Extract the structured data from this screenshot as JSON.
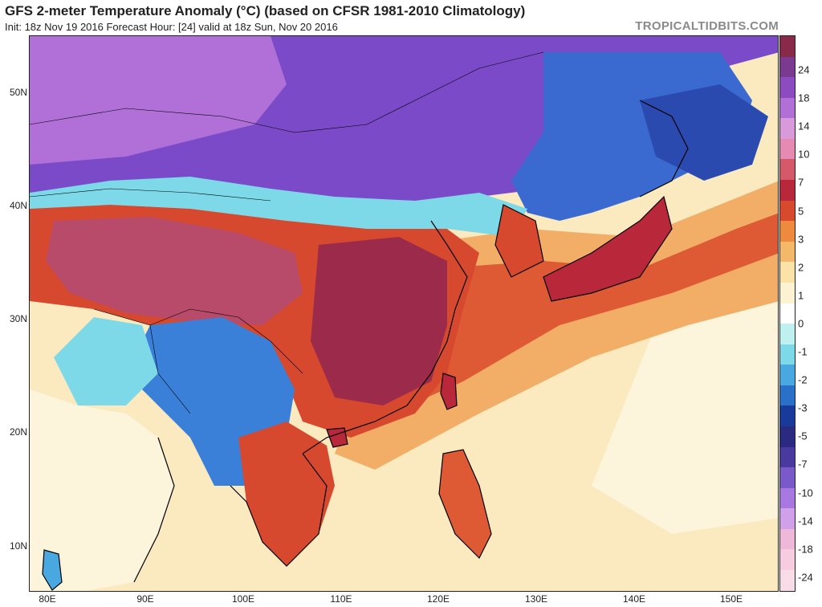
{
  "header": {
    "title": "GFS 2-meter Temperature Anomaly (°C) (based on CFSR 1981-2010 Climatology)",
    "subtitle": "Init: 18z Nov 19 2016   Forecast Hour: [24]   valid at 18z Sun, Nov 20 2016",
    "source": "TROPICALTIDBITS.COM"
  },
  "axes": {
    "lat_labels": [
      "50N",
      "40N",
      "30N",
      "20N",
      "10N"
    ],
    "lon_labels": [
      "80E",
      "90E",
      "100E",
      "110E",
      "120E",
      "130E",
      "140E",
      "150E"
    ]
  },
  "colorbar": {
    "labels": [
      "24",
      "18",
      "14",
      "10",
      "7",
      "5",
      "3",
      "2",
      "1",
      "0",
      "-1",
      "-2",
      "-3",
      "-5",
      "-7",
      "-10",
      "-14",
      "-18",
      "-24"
    ],
    "colors": [
      "#8a2a4a",
      "#7a3a90",
      "#8c4cc0",
      "#b070d8",
      "#d89ad8",
      "#e58ab0",
      "#d45a6a",
      "#b8283a",
      "#d84a2e",
      "#ee8a3e",
      "#f4b86a",
      "#fbe3a8",
      "#fdf2d2",
      "#ffffff",
      "#bff0f0",
      "#7dd8e8",
      "#4aa8e0",
      "#2a70c8",
      "#1a3a9a",
      "#2a2a80",
      "#4a3aa0",
      "#7a5ac8",
      "#a878e0",
      "#d0a0e8",
      "#f0b8d8",
      "#f8cce0",
      "#f8dce8"
    ]
  },
  "map_layers": {
    "ocean": "#fbeac0",
    "warm_core": "#9c2a4a",
    "warm": "#d6492e",
    "mild": "#f0a050",
    "cold": "#3a6ad0",
    "very_cold": "#7a4ac8",
    "extreme_cold": "#b070d8",
    "coast": "#000000"
  }
}
